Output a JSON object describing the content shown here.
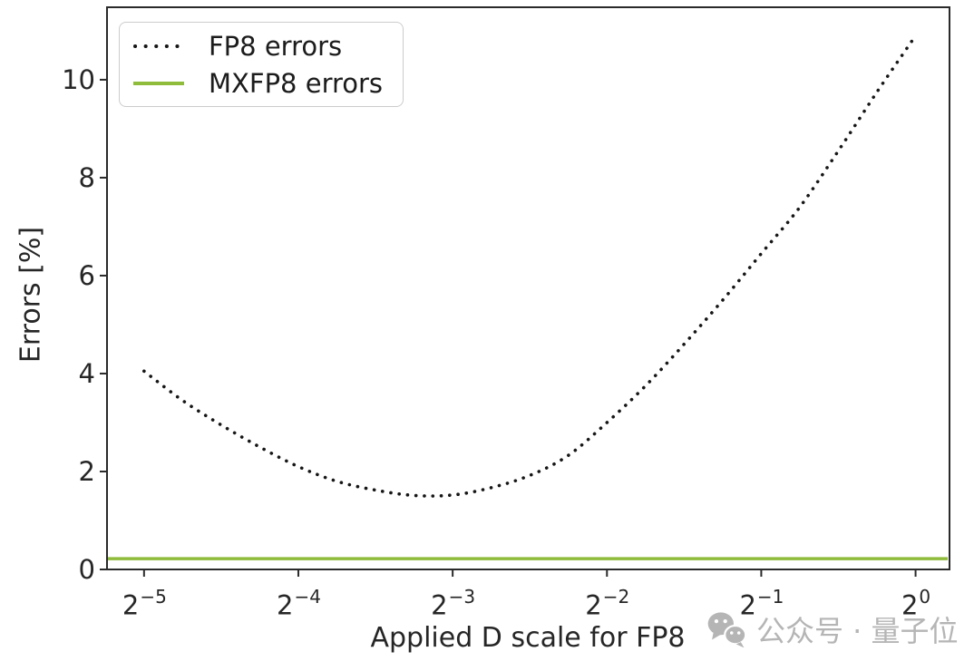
{
  "chart_data": {
    "type": "line",
    "title": "",
    "xlabel": "Applied D scale for FP8",
    "ylabel": "Errors [%]",
    "x_scale": "log2",
    "grid": false,
    "axis_color": "#2a2a2a",
    "x_tick_base": "2",
    "x_tick_exponents": [
      "−5",
      "−4",
      "−3",
      "−2",
      "−1",
      "0"
    ],
    "x_tick_log2": [
      -5,
      -4,
      -3,
      -2,
      -1,
      0
    ],
    "y_ticks": [
      "0",
      "2",
      "4",
      "6",
      "8",
      "10"
    ],
    "xlim_log2": [
      -5.24,
      0.22
    ],
    "ylim": [
      0,
      11.48
    ],
    "legend": {
      "position": "upper left",
      "entries": [
        {
          "label": "FP8 errors",
          "style": "dotted",
          "color": "#161616"
        },
        {
          "label": "MXFP8 errors",
          "style": "solid",
          "color": "#8fbc3a"
        }
      ]
    },
    "series": [
      {
        "name": "FP8 errors",
        "style": "dotted",
        "color": "#161616",
        "x_log2": [
          -5,
          -4.75,
          -4.5,
          -4.25,
          -4,
          -3.75,
          -3.5,
          -3.25,
          -3,
          -2.75,
          -2.5,
          -2.25,
          -2,
          -1.75,
          -1.5,
          -1.25,
          -1,
          -0.75,
          -0.5,
          -0.25,
          0
        ],
        "values": [
          4.05,
          3.45,
          2.95,
          2.5,
          2.1,
          1.8,
          1.62,
          1.51,
          1.52,
          1.67,
          1.92,
          2.33,
          3.0,
          3.75,
          4.6,
          5.5,
          6.45,
          7.4,
          8.55,
          9.75,
          10.9
        ]
      },
      {
        "name": "MXFP8 errors",
        "style": "solid",
        "color": "#8fbc3a",
        "constant_value": 0.22
      }
    ]
  },
  "watermark": {
    "icon": "wechat-icon",
    "text": "公众号 · 量子位",
    "color": "#b5b5b5"
  }
}
